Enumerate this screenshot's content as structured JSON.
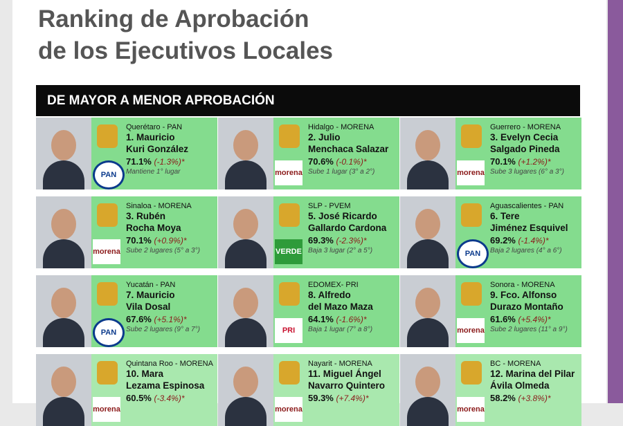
{
  "header": {
    "title_lines": [
      "Ranking de Aprobación",
      "de los Ejecutivos Locales"
    ]
  },
  "banner": "DE MAYOR A MENOR APROBACIÓN",
  "cards": [
    {
      "state": "Querétaro - PAN",
      "name_lines": [
        "1. Mauricio",
        "Kuri González"
      ],
      "approval": "71.1%",
      "change": "(-1.3%)*",
      "note": "Mantiene 1° lugar",
      "logo": "PAN"
    },
    {
      "state": "Hidalgo - MORENA",
      "name_lines": [
        "2. Julio",
        "Menchaca Salazar"
      ],
      "approval": "70.6%",
      "change": "(-0.1%)*",
      "note": "Sube 1 lugar (3° a 2°)",
      "logo": "morena"
    },
    {
      "state": "Guerrero - MORENA",
      "name_lines": [
        "3. Evelyn Cecia",
        "Salgado Pineda"
      ],
      "approval": "70.1%",
      "change": "(+1.2%)*",
      "note": "Sube 3 lugares (6° a 3°)",
      "logo": "morena"
    },
    {
      "state": "Sinaloa - MORENA",
      "name_lines": [
        "3. Rubén",
        "Rocha Moya"
      ],
      "approval": "70.1%",
      "change": "(+0.9%)*",
      "note": "Sube 2 lugares (5° a 3°)",
      "logo": "morena"
    },
    {
      "state": "SLP - PVEM",
      "name_lines": [
        "5. José Ricardo",
        "Gallardo Cardona"
      ],
      "approval": "69.3%",
      "change": "(-2.3%)*",
      "note": "Baja 3 lugar (2° a 5°)",
      "logo": "VERDE"
    },
    {
      "state": "Aguascalientes - PAN",
      "name_lines": [
        "6. Tere",
        "Jiménez Esquivel"
      ],
      "approval": "69.2%",
      "change": "(-1.4%)*",
      "note": "Baja 2 lugares (4° a 6°)",
      "logo": "PAN"
    },
    {
      "state": "Yucatán - PAN",
      "name_lines": [
        "7. Mauricio",
        "Vila Dosal"
      ],
      "approval": "67.6%",
      "change": "(+5.1%)*",
      "note": "Sube 2 lugares (9° a 7°)",
      "logo": "PAN"
    },
    {
      "state": "EDOMEX- PRI",
      "name_lines": [
        "8. Alfredo",
        "del Mazo Maza"
      ],
      "approval": "64.1%",
      "change": "(-1.6%)*",
      "note": "Baja 1 lugar (7° a 8°)",
      "logo": "PRI"
    },
    {
      "state": "Sonora - MORENA",
      "name_lines": [
        "9. Fco. Alfonso",
        "Durazo Montaño"
      ],
      "approval": "61.6%",
      "change": "(+5.4%)*",
      "note": "Sube 2 lugares (11° a 9°)",
      "logo": "morena"
    },
    {
      "state": "Quintana Roo - MORENA",
      "name_lines": [
        "10. Mara",
        "Lezama Espinosa"
      ],
      "approval": "60.5%",
      "change": "(-3.4%)*",
      "note": "",
      "logo": "morena"
    },
    {
      "state": "Nayarit - MORENA",
      "name_lines": [
        "11. Miguel Ángel",
        "Navarro Quintero"
      ],
      "approval": "59.3%",
      "change": "(+7.4%)*",
      "note": "",
      "logo": "morena"
    },
    {
      "state": "BC - MORENA",
      "name_lines": [
        "12. Marina del Pilar",
        "Ávila Olmeda"
      ],
      "approval": "58.2%",
      "change": "(+3.8%)*",
      "note": "",
      "logo": "morena"
    }
  ]
}
